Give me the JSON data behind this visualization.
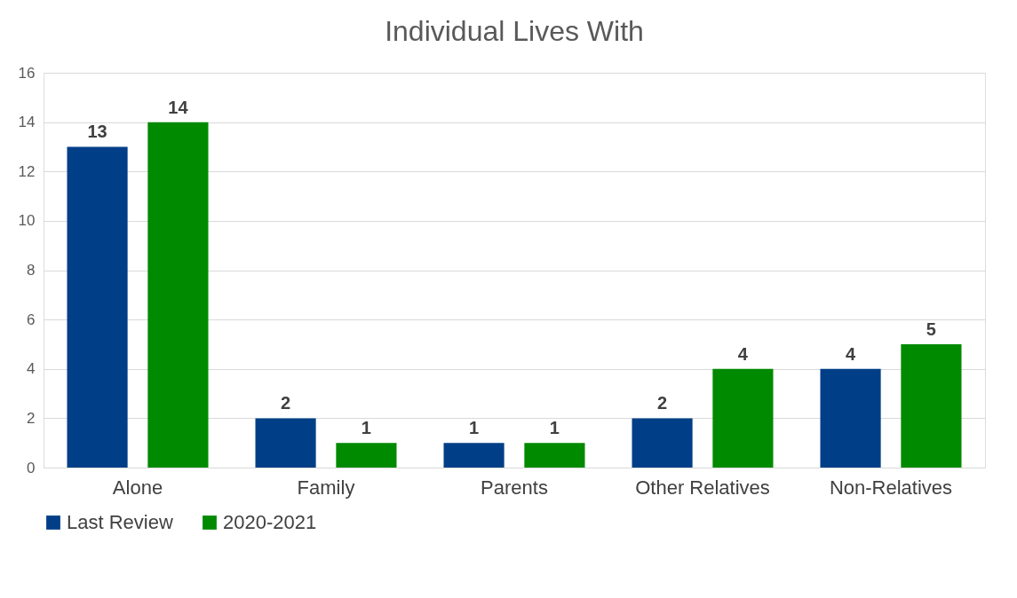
{
  "chart_data": {
    "type": "bar",
    "title": "Individual Lives With",
    "categories": [
      "Alone",
      "Family",
      "Parents",
      "Other Relatives",
      "Non-Relatives"
    ],
    "series": [
      {
        "name": "Last Review",
        "color": "#003f87",
        "values": [
          13,
          2,
          1,
          2,
          4
        ]
      },
      {
        "name": "2020-2021",
        "color": "#008a00",
        "values": [
          14,
          1,
          1,
          4,
          5
        ]
      }
    ],
    "ylim": [
      0,
      16
    ],
    "yticks": [
      0,
      2,
      4,
      6,
      8,
      10,
      12,
      14,
      16
    ],
    "grid": "y",
    "legend": "bottom",
    "data_labels": true
  }
}
